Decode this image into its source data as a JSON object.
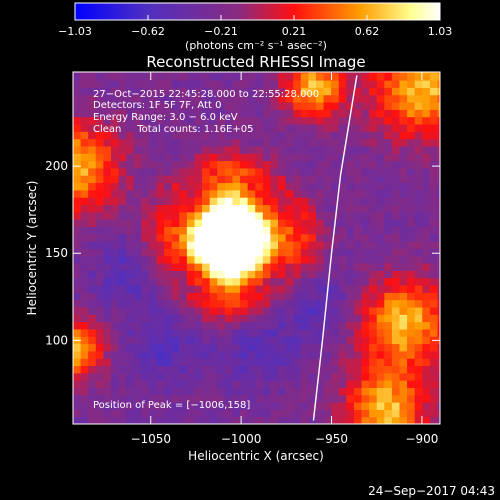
{
  "chart_data": {
    "type": "heatmap",
    "title": "Reconstructed RHESSI Image",
    "xlabel": "Heliocentric X (arcsec)",
    "ylabel": "Heliocentric Y (arcsec)",
    "xlim": [
      -1093,
      -890
    ],
    "ylim": [
      52,
      254
    ],
    "xticks": [
      {
        "value": -1050,
        "label": "−1050"
      },
      {
        "value": -1000,
        "label": "−1000"
      },
      {
        "value": -950,
        "label": "−950"
      },
      {
        "value": -900,
        "label": "−900"
      }
    ],
    "yticks": [
      {
        "value": 100,
        "label": "100"
      },
      {
        "value": 150,
        "label": "150"
      },
      {
        "value": 200,
        "label": "200"
      }
    ],
    "colorbar": {
      "min": -1.03,
      "max": 1.03,
      "ticks": [
        "−1.03",
        "−0.62",
        "−0.21",
        "0.21",
        "0.62",
        "1.03"
      ],
      "unit_label": "(photons cm⁻² s⁻¹ asec⁻²)",
      "colormap": [
        "#0000ff",
        "#5030c0",
        "#8a2a80",
        "#ff1010",
        "#ff9c00",
        "#ffff90",
        "#ffffff"
      ]
    },
    "annotations": [
      "27−Oct−2015 22:45:28.000 to 22:55:28.000",
      "Detectors: 1F 5F 7F, Att 0",
      "Energy Range: 3.0 − 6.0 keV",
      "Clean     Total counts: 1.16E+05",
      "Position of Peak = [−1006,158]"
    ],
    "peak": {
      "x": -1006,
      "y": 158
    },
    "limb_curve": [
      [
        -960,
        54
      ],
      [
        -955,
        100
      ],
      [
        -950,
        150
      ],
      [
        -945,
        195
      ],
      [
        -936,
        252
      ]
    ],
    "grid": false,
    "legend": "none"
  },
  "footer": {
    "timestamp": "24−Sep−2017 04:43"
  }
}
